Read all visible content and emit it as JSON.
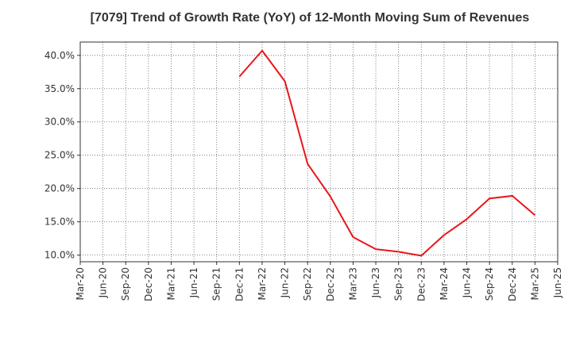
{
  "chart_data": {
    "type": "line",
    "title": "[7079]  Trend of Growth Rate (YoY) of 12-Month Moving Sum of Revenues",
    "xlabel": "",
    "ylabel": "",
    "x_ticks": [
      "Mar-20",
      "Jun-20",
      "Sep-20",
      "Dec-20",
      "Mar-21",
      "Jun-21",
      "Sep-21",
      "Dec-21",
      "Mar-22",
      "Jun-22",
      "Sep-22",
      "Dec-22",
      "Mar-23",
      "Jun-23",
      "Sep-23",
      "Dec-23",
      "Mar-24",
      "Jun-24",
      "Sep-24",
      "Dec-24",
      "Mar-25",
      "Jun-25"
    ],
    "y_ticks": [
      "10.0%",
      "15.0%",
      "20.0%",
      "25.0%",
      "30.0%",
      "35.0%",
      "40.0%"
    ],
    "y_tick_values": [
      10,
      15,
      20,
      25,
      30,
      35,
      40
    ],
    "ylim": [
      9,
      42
    ],
    "grid": true,
    "series": [
      {
        "color": "#e8161b",
        "points": [
          {
            "x": "Dec-21",
            "y": 36.8
          },
          {
            "x": "Mar-22",
            "y": 40.7
          },
          {
            "x": "Jun-22",
            "y": 36.1
          },
          {
            "x": "Sep-22",
            "y": 23.7
          },
          {
            "x": "Dec-22",
            "y": 18.8
          },
          {
            "x": "Mar-23",
            "y": 12.7
          },
          {
            "x": "Jun-23",
            "y": 10.9
          },
          {
            "x": "Sep-23",
            "y": 10.5
          },
          {
            "x": "Dec-23",
            "y": 9.9
          },
          {
            "x": "Mar-24",
            "y": 13.0
          },
          {
            "x": "Jun-24",
            "y": 15.4
          },
          {
            "x": "Sep-24",
            "y": 18.5
          },
          {
            "x": "Dec-24",
            "y": 18.9
          },
          {
            "x": "Mar-25",
            "y": 16.0
          }
        ]
      }
    ]
  }
}
